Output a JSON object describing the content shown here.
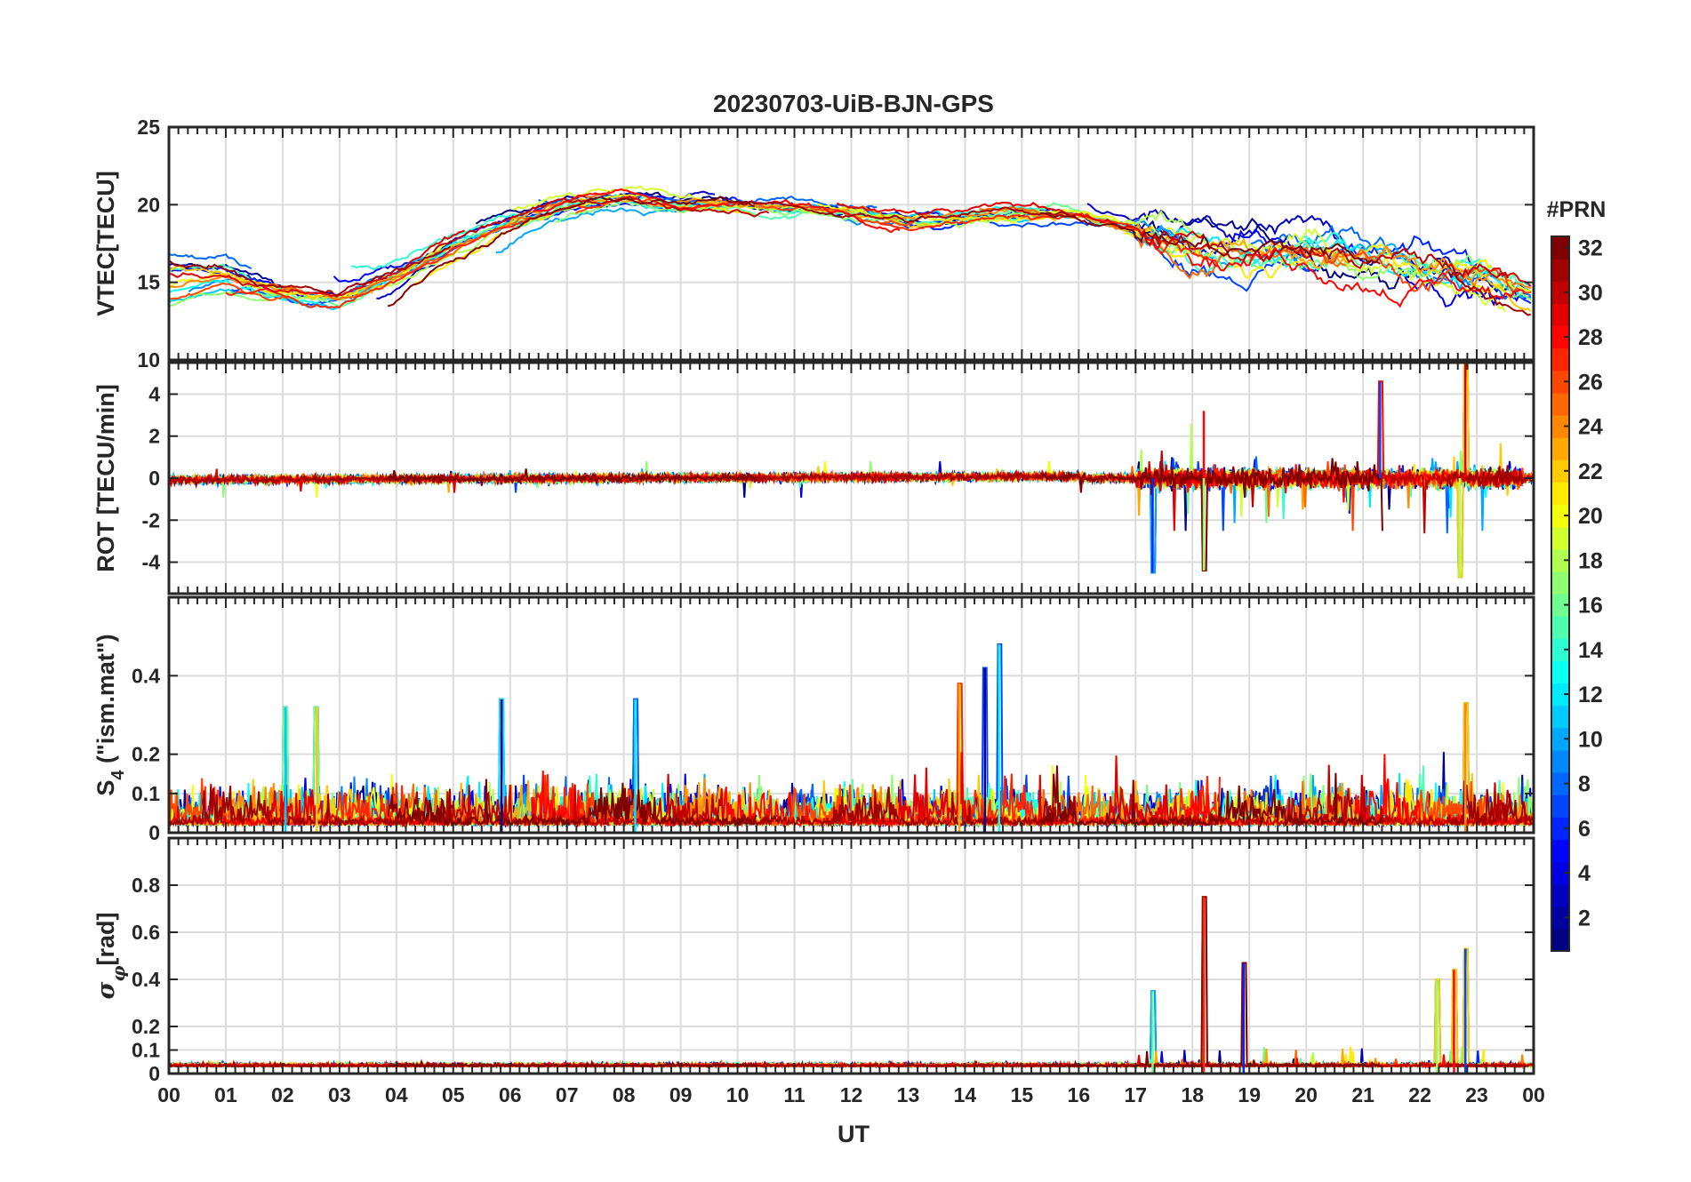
{
  "figure": {
    "title": "20230703-UiB-BJN-GPS",
    "xlabel": "UT",
    "x_ticks": [
      "00",
      "01",
      "02",
      "03",
      "04",
      "05",
      "06",
      "07",
      "08",
      "09",
      "10",
      "11",
      "12",
      "13",
      "14",
      "15",
      "16",
      "17",
      "18",
      "19",
      "20",
      "21",
      "22",
      "23",
      "00"
    ],
    "xlim": [
      0,
      24
    ]
  },
  "colorbar": {
    "title": "#PRN",
    "range": [
      1,
      32
    ],
    "ticks": [
      "2",
      "4",
      "6",
      "8",
      "10",
      "12",
      "14",
      "16",
      "18",
      "20",
      "22",
      "24",
      "26",
      "28",
      "30",
      "32"
    ],
    "colormap": "jet"
  },
  "chart_data": [
    {
      "type": "line",
      "panel": "vtec",
      "ylabel": "VTEC[TECU]",
      "ylim": [
        10,
        25
      ],
      "y_ticks": [
        "10",
        "15",
        "20",
        "25"
      ],
      "grid": true,
      "series_description": "one trace per GPS PRN, coloured by PRN number",
      "approx_profile": {
        "hour": [
          0,
          1,
          2,
          3,
          4,
          5,
          6,
          7,
          8,
          9,
          10,
          11,
          12,
          13,
          14,
          15,
          16,
          17,
          18,
          19,
          20,
          21,
          22,
          23,
          24
        ],
        "vtec_mean": [
          15,
          15.5,
          14.5,
          14,
          15.5,
          17.5,
          19,
          20,
          20.5,
          20,
          20,
          19.8,
          19.5,
          19,
          19.2,
          19.5,
          19.5,
          18.5,
          17.5,
          17,
          17,
          16.5,
          16,
          15.5,
          14
        ]
      }
    },
    {
      "type": "line",
      "panel": "rot",
      "ylabel": "ROT [TECU/min]",
      "ylim": [
        -5.5,
        5.5
      ],
      "y_ticks": [
        "-4",
        "-2",
        "0",
        "2",
        "4"
      ],
      "grid": true,
      "series_description": "rate of TEC per PRN; quiet before 17 UT, bursts after",
      "notable_peaks": [
        {
          "hour": 17.3,
          "value": -4.5
        },
        {
          "hour": 18.2,
          "value": -4.4
        },
        {
          "hour": 18.2,
          "value": 3.2
        },
        {
          "hour": 21.3,
          "value": 4.6
        },
        {
          "hour": 22.7,
          "value": -4.7
        },
        {
          "hour": 22.8,
          "value": 5.5
        }
      ]
    },
    {
      "type": "line",
      "panel": "s4",
      "ylabel": "S4 (\"ism.mat\")",
      "ylim": [
        0,
        0.6
      ],
      "y_ticks": [
        "0",
        "0.1",
        "0.2",
        "0.4"
      ],
      "grid": true,
      "series_description": "amplitude scintillation index per PRN",
      "notable_peaks": [
        {
          "hour": 2.05,
          "value": 0.32
        },
        {
          "hour": 2.6,
          "value": 0.32
        },
        {
          "hour": 5.85,
          "value": 0.34
        },
        {
          "hour": 8.2,
          "value": 0.34
        },
        {
          "hour": 13.9,
          "value": 0.38
        },
        {
          "hour": 14.35,
          "value": 0.42
        },
        {
          "hour": 14.6,
          "value": 0.48
        },
        {
          "hour": 22.8,
          "value": 0.33
        }
      ]
    },
    {
      "type": "line",
      "panel": "sigma_phi",
      "ylabel": "σφ[rad]",
      "ylim": [
        0,
        1
      ],
      "y_ticks": [
        "0",
        "0.1",
        "0.2",
        "0.4",
        "0.6",
        "0.8"
      ],
      "grid": true,
      "series_description": "phase scintillation index per PRN",
      "notable_peaks": [
        {
          "hour": 17.3,
          "value": 0.35
        },
        {
          "hour": 18.2,
          "value": 0.75
        },
        {
          "hour": 18.9,
          "value": 0.47
        },
        {
          "hour": 22.3,
          "value": 0.4
        },
        {
          "hour": 22.6,
          "value": 0.44
        },
        {
          "hour": 22.8,
          "value": 0.53
        }
      ]
    }
  ]
}
